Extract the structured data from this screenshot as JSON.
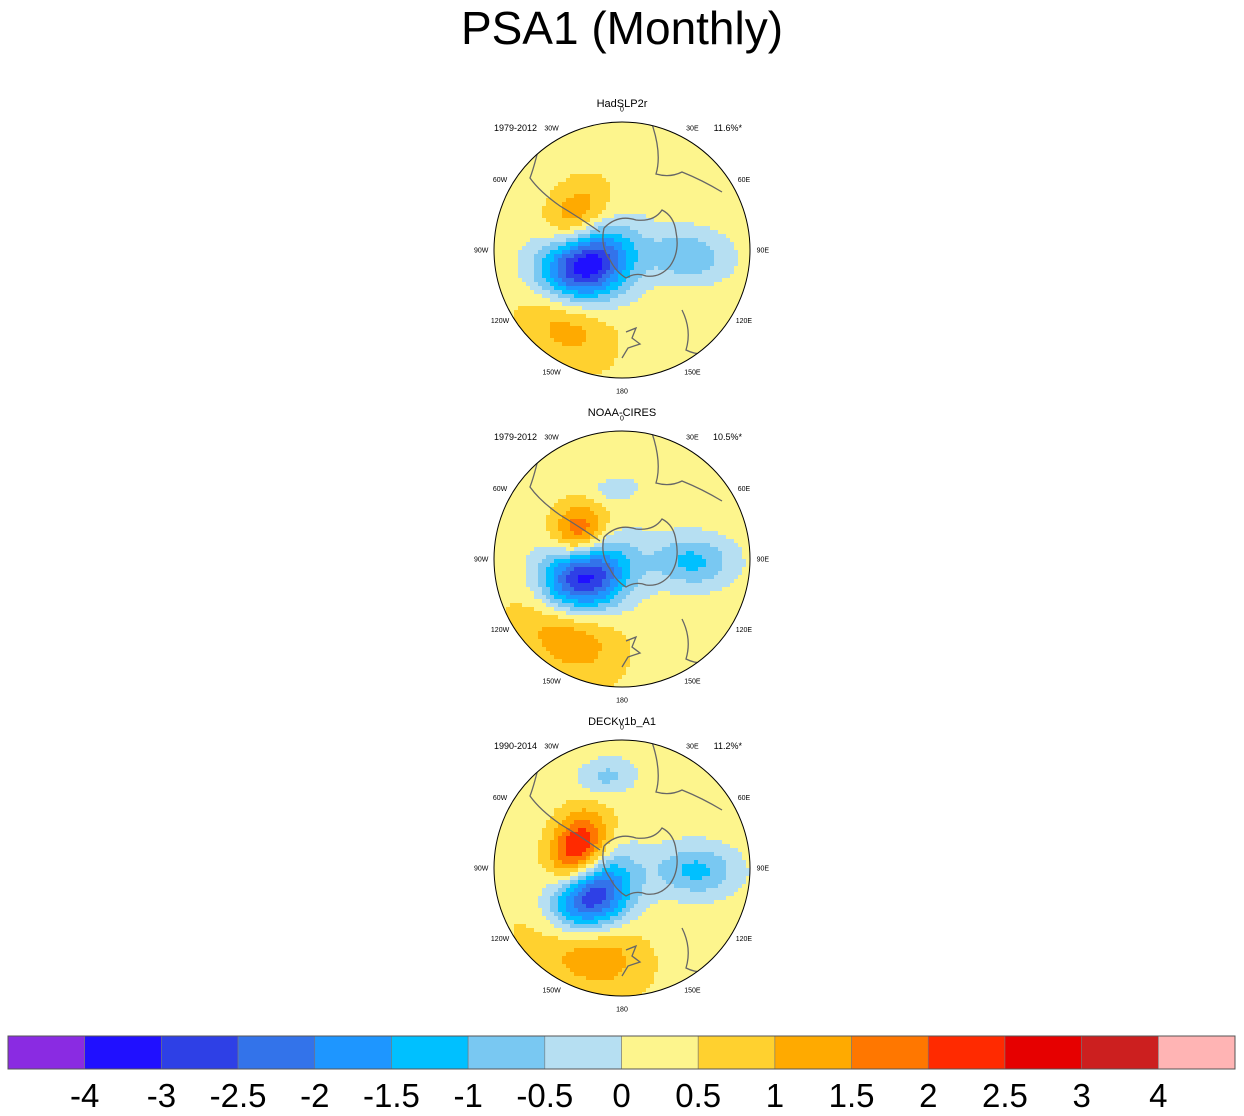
{
  "chart_data": {
    "type": "heatmap",
    "title": "PSA1 (Monthly)",
    "projection": "south-polar-stereographic",
    "panels": [
      {
        "title": "HadSLP2r",
        "period": "1979-2012",
        "variance": "11.6%*",
        "lon_labels": [
          "0",
          "30E",
          "60E",
          "90E",
          "120E",
          "150E",
          "180",
          "150W",
          "120W",
          "90W",
          "60W",
          "30W"
        ],
        "features": [
          {
            "name": "negative-center",
            "lon": -110,
            "r": 0.32,
            "peak": -4.0,
            "sx": 0.2,
            "sy": 0.26
          },
          {
            "name": "positive-center",
            "lon": -60,
            "r": 0.42,
            "peak": 1.6,
            "sx": 0.22,
            "sy": 0.16
          },
          {
            "name": "positive-arc",
            "lon": -140,
            "r": 0.72,
            "peak": 1.1,
            "sx": 0.3,
            "sy": 0.2
          },
          {
            "name": "negative-east",
            "lon": 95,
            "r": 0.52,
            "peak": -1.2,
            "sx": 0.14,
            "sy": 0.22
          }
        ]
      },
      {
        "title": "NOAA-CIRES",
        "period": "1979-2012",
        "variance": "10.5%*",
        "lon_labels": [
          "0",
          "30E",
          "60E",
          "90E",
          "120E",
          "150E",
          "180",
          "150W",
          "120W",
          "90W",
          "60W",
          "30W"
        ],
        "features": [
          {
            "name": "negative-center",
            "lon": -115,
            "r": 0.34,
            "peak": -3.8,
            "sx": 0.2,
            "sy": 0.25
          },
          {
            "name": "positive-center",
            "lon": -60,
            "r": 0.38,
            "peak": 2.2,
            "sx": 0.16,
            "sy": 0.15
          },
          {
            "name": "positive-arc",
            "lon": -140,
            "r": 0.7,
            "peak": 1.4,
            "sx": 0.32,
            "sy": 0.22
          },
          {
            "name": "negative-east",
            "lon": 92,
            "r": 0.55,
            "peak": -1.4,
            "sx": 0.14,
            "sy": 0.22
          },
          {
            "name": "negative-north",
            "lon": -5,
            "r": 0.55,
            "peak": -0.7,
            "sx": 0.12,
            "sy": 0.06
          }
        ]
      },
      {
        "title": "DECKv1b_A1",
        "period": "1990-2014",
        "variance": "11.2%*",
        "lon_labels": [
          "0",
          "30E",
          "60E",
          "90E",
          "120E",
          "150E",
          "180",
          "150W",
          "120W",
          "90W",
          "60W",
          "30W"
        ],
        "features": [
          {
            "name": "negative-center",
            "lon": -130,
            "r": 0.36,
            "peak": -4.0,
            "sx": 0.2,
            "sy": 0.25
          },
          {
            "name": "positive-center",
            "lon": -72,
            "r": 0.36,
            "peak": 2.9,
            "sx": 0.22,
            "sy": 0.15
          },
          {
            "name": "positive-arc",
            "lon": -150,
            "r": 0.66,
            "peak": 1.6,
            "sx": 0.34,
            "sy": 0.22
          },
          {
            "name": "negative-east",
            "lon": 92,
            "r": 0.58,
            "peak": -1.4,
            "sx": 0.14,
            "sy": 0.22
          },
          {
            "name": "negative-north",
            "lon": -10,
            "r": 0.72,
            "peak": -0.9,
            "sx": 0.16,
            "sy": 0.1
          }
        ]
      }
    ],
    "colorbar": {
      "levels": [
        -4,
        -3,
        -2.5,
        -2,
        -1.5,
        -1,
        -0.5,
        0,
        0.5,
        1,
        1.5,
        2,
        2.5,
        3,
        4
      ],
      "tick_labels": [
        "-4",
        "-3",
        "-2.5",
        "-2",
        "-1.5",
        "-1",
        "-0.5",
        "0",
        "0.5",
        "1",
        "1.5",
        "2",
        "2.5",
        "3",
        "4"
      ],
      "colors": [
        "#8a2be2",
        "#2010ff",
        "#2e40e6",
        "#3373ea",
        "#1e96ff",
        "#00c0ff",
        "#79c8f2",
        "#b6dff2",
        "#fdf58d",
        "#ffd12f",
        "#ffaa00",
        "#ff7700",
        "#ff2a00",
        "#e60000",
        "#cc1f1f",
        "#ffb4b4"
      ]
    }
  }
}
